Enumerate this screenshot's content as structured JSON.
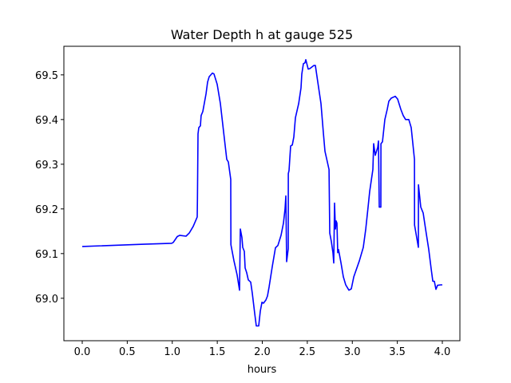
{
  "chart_data": {
    "type": "line",
    "title": "Water Depth h at gauge 525",
    "xlabel": "hours",
    "ylabel": "",
    "xlim": [
      -0.204,
      4.195
    ],
    "ylim": [
      68.905,
      69.564
    ],
    "grid": false,
    "xticks": [
      0.0,
      0.5,
      1.0,
      1.5,
      2.0,
      2.5,
      3.0,
      3.5,
      4.0
    ],
    "xtick_labels": [
      "0.0",
      "0.5",
      "1.0",
      "1.5",
      "2.0",
      "2.5",
      "3.0",
      "3.5",
      "4.0"
    ],
    "yticks": [
      69.0,
      69.1,
      69.2,
      69.3,
      69.4,
      69.5
    ],
    "ytick_labels": [
      "69.0",
      "69.1",
      "69.2",
      "69.3",
      "69.4",
      "69.5"
    ],
    "series": [
      {
        "name": "h",
        "color": "#0000ff",
        "x": [
          0,
          0.683,
          0.993,
          1.011,
          1.055,
          1.082,
          1.153,
          1.188,
          1.233,
          1.277,
          1.28,
          1.286,
          1.295,
          1.313,
          1.321,
          1.339,
          1.375,
          1.392,
          1.41,
          1.446,
          1.463,
          1.499,
          1.534,
          1.57,
          1.605,
          1.623,
          1.65,
          1.651,
          1.685,
          1.721,
          1.747,
          1.756,
          1.774,
          1.783,
          1.8,
          1.809,
          1.827,
          1.845,
          1.871,
          1.889,
          1.916,
          1.933,
          1.96,
          1.978,
          1.996,
          2.013,
          2.04,
          2.058,
          2.075,
          2.111,
          2.146,
          2.173,
          2.208,
          2.235,
          2.253,
          2.262,
          2.27,
          2.288,
          2.289,
          2.297,
          2.315,
          2.333,
          2.35,
          2.368,
          2.404,
          2.43,
          2.439,
          2.457,
          2.474,
          2.483,
          2.51,
          2.528,
          2.572,
          2.59,
          2.616,
          2.652,
          2.678,
          2.696,
          2.723,
          2.741,
          2.749,
          2.767,
          2.785,
          2.794,
          2.803,
          2.812,
          2.82,
          2.829,
          2.838,
          2.847,
          2.874,
          2.9,
          2.927,
          2.962,
          2.989,
          3.016,
          3.078,
          3.122,
          3.149,
          3.175,
          3.193,
          3.228,
          3.237,
          3.255,
          3.282,
          3.29,
          3.299,
          3.317,
          3.318,
          3.335,
          3.361,
          3.388,
          3.406,
          3.432,
          3.477,
          3.503,
          3.539,
          3.565,
          3.592,
          3.627,
          3.654,
          3.69,
          3.691,
          3.734,
          3.735,
          3.76,
          3.787,
          3.814,
          3.849,
          3.876,
          3.894,
          3.911,
          3.929,
          3.947,
          3.982,
          4.0
        ],
        "y": [
          69.116,
          69.121,
          69.123,
          69.125,
          69.138,
          69.141,
          69.139,
          69.146,
          69.161,
          69.182,
          69.223,
          69.368,
          69.382,
          69.386,
          69.409,
          69.418,
          69.457,
          69.484,
          69.496,
          69.504,
          69.502,
          69.479,
          69.436,
          69.373,
          69.311,
          69.305,
          69.266,
          69.12,
          69.084,
          69.052,
          69.018,
          69.155,
          69.136,
          69.114,
          69.105,
          69.068,
          69.057,
          69.041,
          69.036,
          69.011,
          68.966,
          68.938,
          68.938,
          68.971,
          68.991,
          68.989,
          68.996,
          69.005,
          69.025,
          69.071,
          69.113,
          69.118,
          69.141,
          69.168,
          69.2,
          69.229,
          69.082,
          69.111,
          69.279,
          69.286,
          69.341,
          69.343,
          69.361,
          69.404,
          69.436,
          69.471,
          69.502,
          69.525,
          69.527,
          69.534,
          69.513,
          69.514,
          69.521,
          69.521,
          69.484,
          69.436,
          69.37,
          69.329,
          69.305,
          69.288,
          69.146,
          69.127,
          69.102,
          69.079,
          69.213,
          69.155,
          69.173,
          69.168,
          69.102,
          69.109,
          69.079,
          69.048,
          69.03,
          69.018,
          69.021,
          69.048,
          69.084,
          69.114,
          69.155,
          69.204,
          69.239,
          69.288,
          69.346,
          69.32,
          69.338,
          69.352,
          69.204,
          69.204,
          69.346,
          69.35,
          69.4,
          69.423,
          69.441,
          69.448,
          69.452,
          69.446,
          69.423,
          69.409,
          69.4,
          69.4,
          69.382,
          69.311,
          69.164,
          69.114,
          69.254,
          69.204,
          69.191,
          69.155,
          69.109,
          69.066,
          69.038,
          69.038,
          69.02,
          69.029,
          69.03,
          69.03
        ]
      }
    ]
  }
}
